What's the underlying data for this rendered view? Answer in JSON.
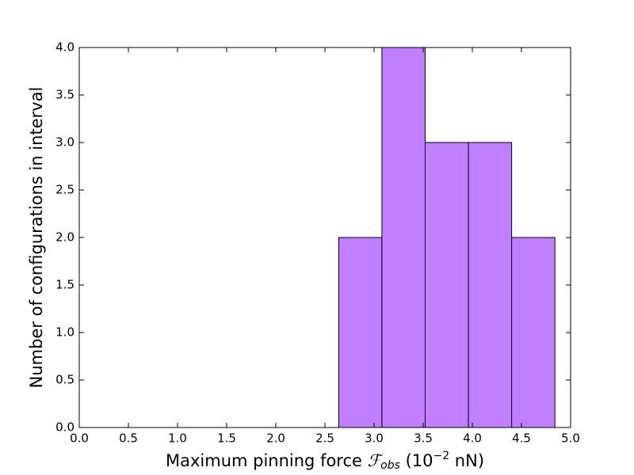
{
  "chart_data": {
    "type": "histogram",
    "xlabel": [
      "Maximum pinning force ",
      "ℱ",
      "obs",
      " (10",
      "−2",
      " nN)"
    ],
    "ylabel": "Number of configurations in interval",
    "bins": [
      2.64,
      3.08,
      3.52,
      3.96,
      4.4,
      4.84
    ],
    "values": [
      2,
      4,
      3,
      3,
      2
    ],
    "color": "#bf7fff",
    "edgecolor": "#000000",
    "xlim": [
      0,
      5
    ],
    "ylim": [
      0,
      4
    ],
    "xticks": [
      {
        "value": 0,
        "label": "0.0"
      },
      {
        "value": 0.5,
        "label": "0.5"
      },
      {
        "value": 1,
        "label": "1.0"
      },
      {
        "value": 1.5,
        "label": "1.5"
      },
      {
        "value": 2,
        "label": "2.0"
      },
      {
        "value": 2.5,
        "label": "2.5"
      },
      {
        "value": 3,
        "label": "3.0"
      },
      {
        "value": 3.5,
        "label": "3.5"
      },
      {
        "value": 4,
        "label": "4.0"
      },
      {
        "value": 4.5,
        "label": "4.5"
      },
      {
        "value": 5,
        "label": "5.0"
      }
    ],
    "yticks": [
      {
        "value": 0,
        "label": "0.0"
      },
      {
        "value": 0.5,
        "label": "0.5"
      },
      {
        "value": 1,
        "label": "1.0"
      },
      {
        "value": 1.5,
        "label": "1.5"
      },
      {
        "value": 2,
        "label": "2.0"
      },
      {
        "value": 2.5,
        "label": "2.5"
      },
      {
        "value": 3,
        "label": "3.0"
      },
      {
        "value": 3.5,
        "label": "3.5"
      },
      {
        "value": 4,
        "label": "4.0"
      }
    ],
    "grid": false
  }
}
